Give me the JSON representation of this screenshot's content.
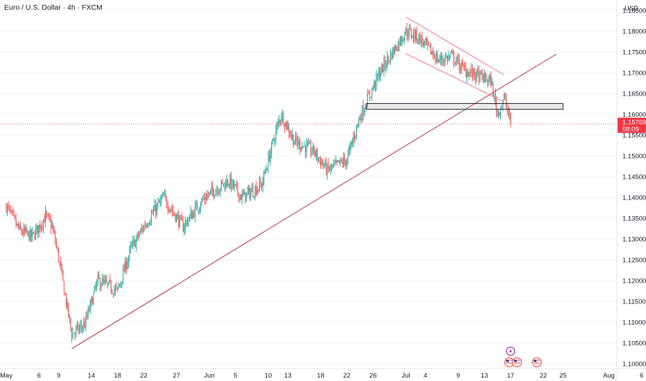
{
  "header": {
    "title": "Euro / U.S. Dollar · 4h · FXCM",
    "currency": "USD"
  },
  "colors": {
    "up": "#26a69a",
    "down": "#ef5350",
    "trend": "#b2283b",
    "channel": "#f06c8a",
    "price_tag": "#f23645",
    "grid": "#f0f3fa"
  },
  "events": [
    {
      "icon": "lightning-icon",
      "date": "Jul 17"
    },
    {
      "icon": "us-flag-icon",
      "date": "Jul 17"
    },
    {
      "icon": "us-flag-icon",
      "date": "Jul 18"
    },
    {
      "icon": "us-flag-icon",
      "date": "Jul 21"
    }
  ],
  "chart_data": {
    "type": "candlestick",
    "title": "Euro / U.S. Dollar · 4h · FXCM",
    "ylim": [
      1.0975,
      1.1875
    ],
    "y_ticks": [
      "1.18500",
      "1.18000",
      "1.17500",
      "1.17000",
      "1.16500",
      "1.16000",
      "1.15500",
      "1.15000",
      "1.14500",
      "1.14000",
      "1.13500",
      "1.13000",
      "1.12500",
      "1.12000",
      "1.11500",
      "1.11000",
      "1.10500",
      "1.10000"
    ],
    "x_ticks": [
      "May",
      "6",
      "9",
      "14",
      "18",
      "22",
      "27",
      "Jun",
      "5",
      "10",
      "13",
      "18",
      "22",
      "26",
      "Jul",
      "4",
      "9",
      "13",
      "17",
      "22",
      "25",
      "Aug",
      "6"
    ],
    "last_price": {
      "value": "1.15769",
      "countdown": "58:09"
    },
    "zone": {
      "from": "Jun 25",
      "to": "Jul 25",
      "low": 1.1612,
      "high": 1.1626
    },
    "trendline": {
      "from": {
        "date": "May 11",
        "price": 1.1036
      },
      "to": {
        "date": "Jul 24",
        "price": 1.1745
      }
    },
    "channel": {
      "upper": [
        {
          "date": "Jul 1",
          "price": 1.1834
        },
        {
          "date": "Jul 16",
          "price": 1.1695
        }
      ],
      "lower": [
        {
          "date": "Jul 1",
          "price": 1.1746
        },
        {
          "date": "Jul 16",
          "price": 1.163
        }
      ]
    },
    "anchors": [
      {
        "date": "May 1",
        "price": 1.138
      },
      {
        "date": "May 3",
        "price": 1.132
      },
      {
        "date": "May 5",
        "price": 1.1305
      },
      {
        "date": "May 7",
        "price": 1.1355
      },
      {
        "date": "May 8",
        "price": 1.133
      },
      {
        "date": "May 9",
        "price": 1.1255
      },
      {
        "date": "May 11",
        "price": 1.107
      },
      {
        "date": "May 13",
        "price": 1.1095
      },
      {
        "date": "May 15",
        "price": 1.12
      },
      {
        "date": "May 18",
        "price": 1.1175
      },
      {
        "date": "May 20",
        "price": 1.1275
      },
      {
        "date": "May 22",
        "price": 1.133
      },
      {
        "date": "May 25",
        "price": 1.14
      },
      {
        "date": "May 28",
        "price": 1.133
      },
      {
        "date": "May 31",
        "price": 1.1395
      },
      {
        "date": "Jun 2",
        "price": 1.142
      },
      {
        "date": "Jun 4",
        "price": 1.144
      },
      {
        "date": "Jun 6",
        "price": 1.14
      },
      {
        "date": "Jun 9",
        "price": 1.143
      },
      {
        "date": "Jun 11",
        "price": 1.155
      },
      {
        "date": "Jun 12",
        "price": 1.16
      },
      {
        "date": "Jun 14",
        "price": 1.1535
      },
      {
        "date": "Jun 17",
        "price": 1.151
      },
      {
        "date": "Jun 19",
        "price": 1.1465
      },
      {
        "date": "Jun 22",
        "price": 1.149
      },
      {
        "date": "Jun 24",
        "price": 1.1595
      },
      {
        "date": "Jun 27",
        "price": 1.17
      },
      {
        "date": "Jul 1",
        "price": 1.18
      },
      {
        "date": "Jul 3",
        "price": 1.1785
      },
      {
        "date": "Jul 6",
        "price": 1.173
      },
      {
        "date": "Jul 8",
        "price": 1.174
      },
      {
        "date": "Jul 10",
        "price": 1.1705
      },
      {
        "date": "Jul 14",
        "price": 1.168
      },
      {
        "date": "Jul 15",
        "price": 1.16
      },
      {
        "date": "Jul 16",
        "price": 1.164
      },
      {
        "date": "Jul 17",
        "price": 1.158
      }
    ]
  }
}
